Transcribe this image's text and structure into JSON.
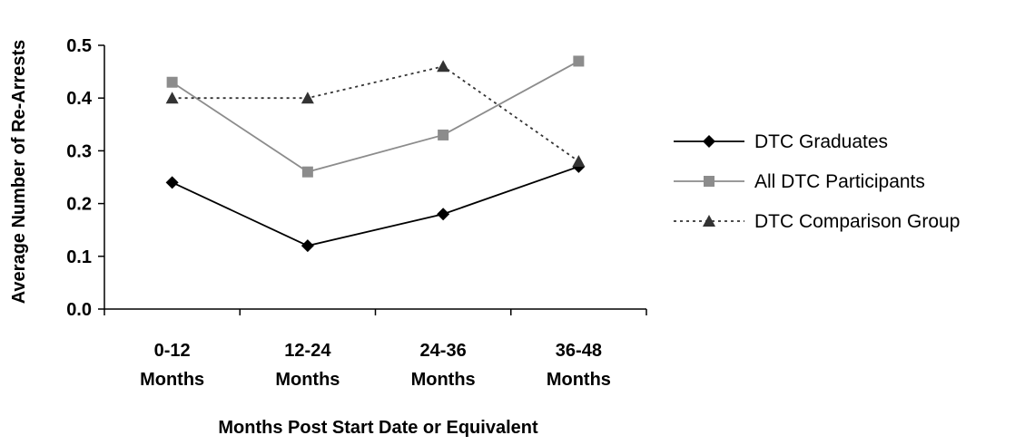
{
  "chart_data": {
    "type": "line",
    "title": "",
    "xlabel": "Months Post Start Date or Equivalent",
    "ylabel": "Average Number of Re-Arrests",
    "categories": [
      [
        "0-12",
        "Months"
      ],
      [
        "12-24",
        "Months"
      ],
      [
        "24-36",
        "Months"
      ],
      [
        "36-48",
        "Months"
      ]
    ],
    "ylim": [
      0,
      0.5
    ],
    "yticks": [
      "0.0",
      "0.1",
      "0.2",
      "0.3",
      "0.4",
      "0.5"
    ],
    "grid": false,
    "legend_position": "right",
    "series": [
      {
        "name": "DTC Graduates",
        "values": [
          0.24,
          0.12,
          0.18,
          0.27
        ],
        "color": "#000000",
        "marker": "diamond",
        "dash": "solid"
      },
      {
        "name": "All DTC Participants",
        "values": [
          0.43,
          0.26,
          0.33,
          0.47
        ],
        "color": "#8c8c8c",
        "marker": "square",
        "dash": "solid"
      },
      {
        "name": "DTC Comparison Group",
        "values": [
          0.4,
          0.4,
          0.46,
          0.28
        ],
        "color": "#333333",
        "marker": "triangle",
        "dash": "dotted"
      }
    ]
  }
}
